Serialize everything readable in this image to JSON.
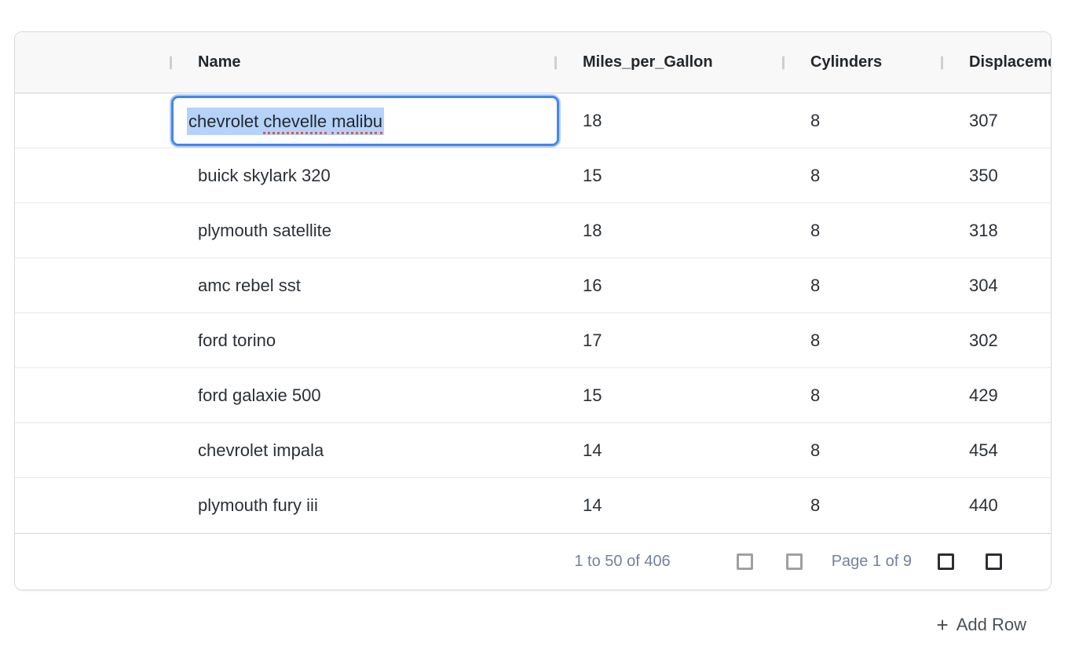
{
  "grid": {
    "columns": [
      {
        "id": "rowhandle",
        "label": ""
      },
      {
        "id": "name",
        "label": "Name"
      },
      {
        "id": "mpg",
        "label": "Miles_per_Gallon"
      },
      {
        "id": "cylinders",
        "label": "Cylinders"
      },
      {
        "id": "displacement",
        "label": "Displacement"
      }
    ],
    "rows": [
      {
        "name": "chevrolet chevelle malibu",
        "mpg": "18",
        "cylinders": "8",
        "displacement": "307"
      },
      {
        "name": "buick skylark 320",
        "mpg": "15",
        "cylinders": "8",
        "displacement": "350"
      },
      {
        "name": "plymouth satellite",
        "mpg": "18",
        "cylinders": "8",
        "displacement": "318"
      },
      {
        "name": "amc rebel sst",
        "mpg": "16",
        "cylinders": "8",
        "displacement": "304"
      },
      {
        "name": "ford torino",
        "mpg": "17",
        "cylinders": "8",
        "displacement": "302"
      },
      {
        "name": "ford galaxie 500",
        "mpg": "15",
        "cylinders": "8",
        "displacement": "429"
      },
      {
        "name": "chevrolet impala",
        "mpg": "14",
        "cylinders": "8",
        "displacement": "454"
      },
      {
        "name": "plymouth fury iii",
        "mpg": "14",
        "cylinders": "8",
        "displacement": "440"
      }
    ],
    "editor": {
      "row_index": 0,
      "column": "Name",
      "value": "chevrolet chevelle malibu",
      "segments": [
        "chevrolet ",
        "chevelle",
        " ",
        "malibu"
      ],
      "misspelled_words": [
        "chevelle",
        "malibu"
      ],
      "text_selected": true
    },
    "footer": {
      "range_summary": "1 to 50 of 406",
      "page_status": "Page 1 of 9",
      "buttons": [
        {
          "name": "first-page",
          "enabled": false
        },
        {
          "name": "previous-page",
          "enabled": false
        },
        {
          "name": "next-page",
          "enabled": true
        },
        {
          "name": "last-page",
          "enabled": true
        }
      ]
    }
  },
  "actions": {
    "add_row_icon": "+",
    "add_row_label": "Add Row"
  },
  "colors": {
    "accent_blue": "#4486ea",
    "selection_blue": "#b5d2f9",
    "spellcheck_red": "#e0564e",
    "header_bg": "#f8f8f8",
    "footer_text": "#76819e",
    "pager_disabled": "#9fa0a2",
    "pager_enabled": "#2b2f34"
  }
}
